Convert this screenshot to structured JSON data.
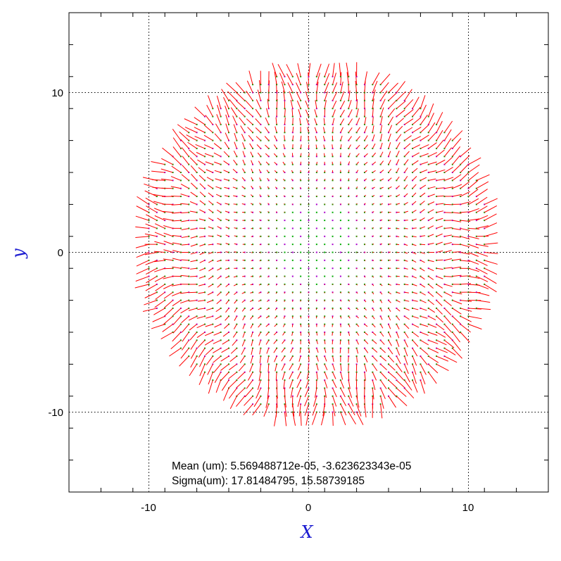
{
  "chart_data": {
    "type": "quiver",
    "title": "",
    "xlabel": "X",
    "ylabel": "y",
    "xlim": [
      -15,
      15
    ],
    "ylim": [
      -15,
      15
    ],
    "grid": true,
    "x_ticks": [
      {
        "value": -10,
        "label": "-10"
      },
      {
        "value": 0,
        "label": "0"
      },
      {
        "value": 10,
        "label": "10"
      }
    ],
    "y_ticks": [
      {
        "value": 10,
        "label": "10"
      },
      {
        "value": 0,
        "label": "0"
      },
      {
        "value": -10,
        "label": "-10"
      }
    ],
    "minor_tick_step": 2,
    "field": {
      "grid_spacing": 0.5,
      "region_radius": 10.8,
      "region_center": [
        0.5,
        0.5
      ],
      "pattern": "radial residuals: vectors point outward and grow with radius; center near zero",
      "max_vector_length_data_units": 0.9
    },
    "annotations": {
      "mean_line": "Mean (um): 5.569488712e-05, -3.623623343e-05",
      "sigma_line": "Sigma(um): 17.81484795, 15.58739185"
    },
    "colors": {
      "vector": "#ff0000",
      "point_primary": "#00aa00",
      "point_secondary": "#aa00cc",
      "axis_label": "#1a1ad0",
      "grid": "#000000"
    }
  }
}
